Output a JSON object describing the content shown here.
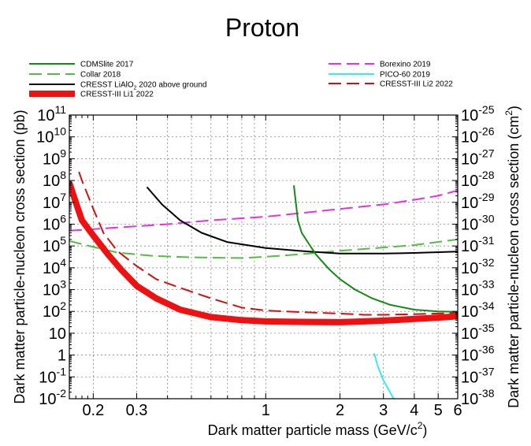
{
  "chart_data": {
    "type": "line",
    "title": "Proton",
    "xlabel": "Dark matter particle mass (GeV/c",
    "xlabel_sup": "2",
    "xlabel_end": ")",
    "ylabel": "Dark matter particle-nucleon cross section (pb)",
    "ylabel_right": "Dark matter particle-nucleon cross section (cm",
    "ylabel_right_sup": "2",
    "ylabel_right_end": ")",
    "x_scale": "log",
    "y_scale": "log",
    "xlim": [
      0.16,
      6
    ],
    "ylim": [
      0.01,
      100000000000
    ],
    "grid": true,
    "x_ticks": [
      {
        "value": 0.2,
        "label": "0.2"
      },
      {
        "value": 0.3,
        "label": "0.3"
      },
      {
        "value": 1,
        "label": "1"
      },
      {
        "value": 2,
        "label": "2"
      },
      {
        "value": 3,
        "label": "3"
      },
      {
        "value": 4,
        "label": "4"
      },
      {
        "value": 5,
        "label": "5"
      },
      {
        "value": 6,
        "label": "6"
      }
    ],
    "y_ticks_left": [
      {
        "value": 0.01,
        "base": "10",
        "exp": "-2"
      },
      {
        "value": 0.1,
        "base": "10",
        "exp": "-1"
      },
      {
        "value": 1,
        "base": "1",
        "exp": ""
      },
      {
        "value": 10,
        "base": "10",
        "exp": ""
      },
      {
        "value": 100,
        "base": "10",
        "exp": "2"
      },
      {
        "value": 1000,
        "base": "10",
        "exp": "3"
      },
      {
        "value": 10000,
        "base": "10",
        "exp": "4"
      },
      {
        "value": 100000,
        "base": "10",
        "exp": "5"
      },
      {
        "value": 1000000,
        "base": "10",
        "exp": "6"
      },
      {
        "value": 10000000,
        "base": "10",
        "exp": "7"
      },
      {
        "value": 100000000,
        "base": "10",
        "exp": "8"
      },
      {
        "value": 1000000000,
        "base": "10",
        "exp": "9"
      },
      {
        "value": 10000000000,
        "base": "10",
        "exp": "10"
      },
      {
        "value": 100000000000,
        "base": "10",
        "exp": "11"
      }
    ],
    "y_ticks_right": [
      {
        "value": 0.01,
        "base": "10",
        "exp": "-38"
      },
      {
        "value": 0.1,
        "base": "10",
        "exp": "-37"
      },
      {
        "value": 1,
        "base": "10",
        "exp": "-36"
      },
      {
        "value": 10,
        "base": "10",
        "exp": "-35"
      },
      {
        "value": 100,
        "base": "10",
        "exp": "-34"
      },
      {
        "value": 1000,
        "base": "10",
        "exp": "-33"
      },
      {
        "value": 10000,
        "base": "10",
        "exp": "-32"
      },
      {
        "value": 100000,
        "base": "10",
        "exp": "-31"
      },
      {
        "value": 1000000,
        "base": "10",
        "exp": "-30"
      },
      {
        "value": 10000000,
        "base": "10",
        "exp": "-29"
      },
      {
        "value": 100000000,
        "base": "10",
        "exp": "-28"
      },
      {
        "value": 1000000000,
        "base": "10",
        "exp": "-27"
      },
      {
        "value": 10000000000,
        "base": "10",
        "exp": "-26"
      },
      {
        "value": 100000000000,
        "base": "10",
        "exp": "-25"
      }
    ],
    "series": [
      {
        "name": "CDMSlite 2017",
        "color": "#138a13",
        "dash": "solid",
        "width": 2,
        "points": [
          [
            1.3,
            60000000
          ],
          [
            1.35,
            1500000
          ],
          [
            1.4,
            400000
          ],
          [
            1.5,
            120000
          ],
          [
            1.6,
            40000
          ],
          [
            1.8,
            9000
          ],
          [
            2.0,
            3000
          ],
          [
            2.3,
            1000
          ],
          [
            2.7,
            400
          ],
          [
            3.2,
            200
          ],
          [
            4.0,
            120
          ],
          [
            5.0,
            100
          ],
          [
            6.0,
            95
          ]
        ]
      },
      {
        "name": "Collar 2018",
        "color": "#55bb44",
        "dash": "long",
        "width": 2,
        "points": [
          [
            0.16,
            170000
          ],
          [
            0.2,
            90000
          ],
          [
            0.25,
            50000
          ],
          [
            0.35,
            35000
          ],
          [
            0.5,
            30000
          ],
          [
            0.8,
            28000
          ],
          [
            1.0,
            32000
          ],
          [
            1.5,
            45000
          ],
          [
            2.0,
            60000
          ],
          [
            3.0,
            85000
          ],
          [
            4.0,
            110000
          ],
          [
            6.0,
            200000
          ]
        ]
      },
      {
        "name": "CRESST LiAlO",
        "name_sub": "2",
        "name_end": " 2020 above ground",
        "color": "#000000",
        "dash": "solid",
        "width": 2,
        "points": [
          [
            0.33,
            50000000
          ],
          [
            0.38,
            8000000
          ],
          [
            0.45,
            1500000
          ],
          [
            0.55,
            400000
          ],
          [
            0.7,
            150000
          ],
          [
            1.0,
            80000
          ],
          [
            1.5,
            55000
          ],
          [
            2.0,
            45000
          ],
          [
            3.0,
            45000
          ],
          [
            4.0,
            48000
          ],
          [
            6.0,
            55000
          ]
        ]
      },
      {
        "name": "CRESST-III Li1 2022",
        "color": "#ee1111",
        "dash": "solid",
        "width": 8,
        "points": [
          [
            0.16,
            80000000
          ],
          [
            0.17,
            10000000
          ],
          [
            0.18,
            1500000
          ],
          [
            0.2,
            300000
          ],
          [
            0.23,
            40000
          ],
          [
            0.26,
            8000
          ],
          [
            0.3,
            1500
          ],
          [
            0.36,
            400
          ],
          [
            0.45,
            120
          ],
          [
            0.6,
            55
          ],
          [
            0.8,
            40
          ],
          [
            1.0,
            35
          ],
          [
            1.5,
            33
          ],
          [
            2.0,
            32
          ],
          [
            2.5,
            35
          ],
          [
            3.0,
            38
          ],
          [
            4.0,
            45
          ],
          [
            5.0,
            52
          ],
          [
            6.0,
            60
          ]
        ]
      },
      {
        "name": "Borexino 2019",
        "color": "#e033e0",
        "dash": "long",
        "width": 2,
        "points": [
          [
            0.16,
            500000
          ],
          [
            0.25,
            700000
          ],
          [
            0.4,
            1000000
          ],
          [
            0.6,
            1500000
          ],
          [
            1.0,
            2200000
          ],
          [
            1.5,
            3500000
          ],
          [
            2.0,
            5000000
          ],
          [
            3.0,
            8000000
          ],
          [
            4.0,
            13000000
          ],
          [
            5.0,
            20000000
          ],
          [
            6.0,
            35000000
          ]
        ]
      },
      {
        "name": "PICO-60 2019",
        "color": "#33eeee",
        "dash": "solid",
        "width": 2,
        "points": [
          [
            2.75,
            1.2
          ],
          [
            2.85,
            0.3
          ],
          [
            3.0,
            0.07
          ],
          [
            3.3,
            0.01
          ]
        ]
      },
      {
        "name": "CRESST-III Li2 2022",
        "color": "#cc1111",
        "dash": "long",
        "width": 2,
        "points": [
          [
            0.175,
            250000000
          ],
          [
            0.18,
            100000000
          ],
          [
            0.2,
            5000000
          ],
          [
            0.22,
            400000
          ],
          [
            0.25,
            60000
          ],
          [
            0.3,
            12000
          ],
          [
            0.36,
            3000
          ],
          [
            0.45,
            1200
          ],
          [
            0.6,
            400
          ],
          [
            0.8,
            150
          ],
          [
            1.0,
            110
          ],
          [
            1.5,
            90
          ],
          [
            2.0,
            80
          ],
          [
            2.5,
            70
          ],
          [
            3.0,
            70
          ],
          [
            4.0,
            75
          ],
          [
            5.0,
            80
          ],
          [
            6.0,
            85
          ]
        ]
      }
    ]
  }
}
